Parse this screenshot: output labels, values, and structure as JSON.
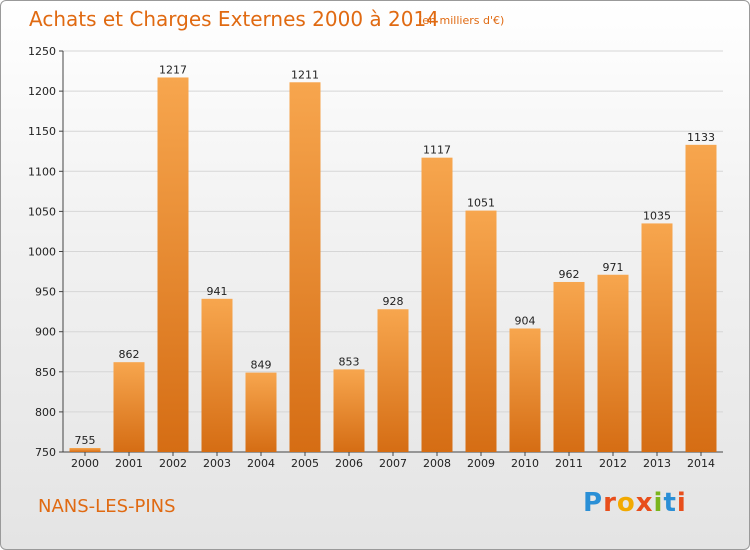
{
  "header": {
    "title": "Achats et Charges Externes 2000 à 2014",
    "subtitle": "(en milliers d'€)"
  },
  "footer": {
    "location": "NANS-LES-PINS",
    "logo_text": "Proxiti",
    "logo_colors": [
      "#2a8fd6",
      "#e84e1b",
      "#f2a900",
      "#e84e1b",
      "#7ab51d",
      "#2a8fd6",
      "#e84e1b"
    ]
  },
  "colors": {
    "bar_light": "#f7a64e",
    "bar_dark": "#d56d14",
    "accent": "#e06a12",
    "grid": "#d6d6d6"
  },
  "chart_data": {
    "type": "bar",
    "title": "Achats et Charges Externes 2000 à 2014",
    "subtitle": "(en milliers d'€)",
    "xlabel": "",
    "ylabel": "",
    "categories": [
      "2000",
      "2001",
      "2002",
      "2003",
      "2004",
      "2005",
      "2006",
      "2007",
      "2008",
      "2009",
      "2010",
      "2011",
      "2012",
      "2013",
      "2014"
    ],
    "values": [
      755,
      862,
      1217,
      941,
      849,
      1211,
      853,
      928,
      1117,
      1051,
      904,
      962,
      971,
      1035,
      1133
    ],
    "ylim": [
      750,
      1250
    ],
    "yticks": [
      750,
      800,
      850,
      900,
      950,
      1000,
      1050,
      1100,
      1150,
      1200,
      1250
    ],
    "grid": true,
    "legend": "none"
  }
}
